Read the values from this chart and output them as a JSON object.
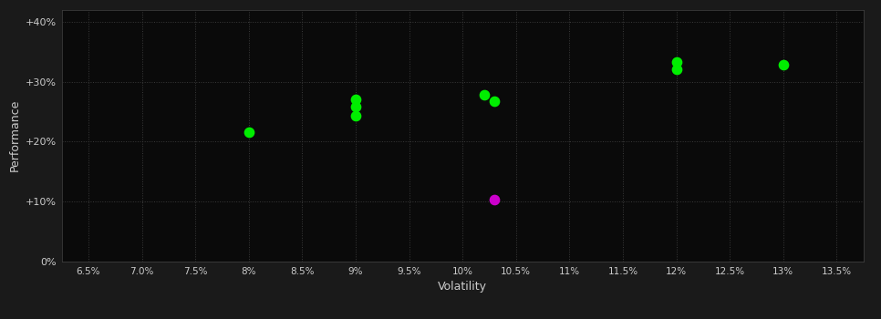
{
  "background_color": "#1a1a1a",
  "plot_bg_color": "#0a0a0a",
  "grid_color": "#3a3a3a",
  "text_color": "#cccccc",
  "xlabel": "Volatility",
  "ylabel": "Performance",
  "xlim": [
    0.0625,
    0.1375
  ],
  "ylim": [
    0.0,
    0.42
  ],
  "xtick_values": [
    0.065,
    0.07,
    0.075,
    0.08,
    0.085,
    0.09,
    0.095,
    0.1,
    0.105,
    0.11,
    0.115,
    0.12,
    0.125,
    0.13,
    0.135
  ],
  "ytick_values": [
    0.0,
    0.1,
    0.2,
    0.3,
    0.4
  ],
  "green_points": [
    [
      0.08,
      0.215
    ],
    [
      0.09,
      0.27
    ],
    [
      0.09,
      0.258
    ],
    [
      0.09,
      0.243
    ],
    [
      0.102,
      0.278
    ],
    [
      0.103,
      0.268
    ],
    [
      0.12,
      0.332
    ],
    [
      0.12,
      0.32
    ],
    [
      0.13,
      0.328
    ]
  ],
  "magenta_points": [
    [
      0.103,
      0.103
    ]
  ],
  "green_color": "#00ee00",
  "magenta_color": "#cc00cc",
  "marker_size": 55
}
